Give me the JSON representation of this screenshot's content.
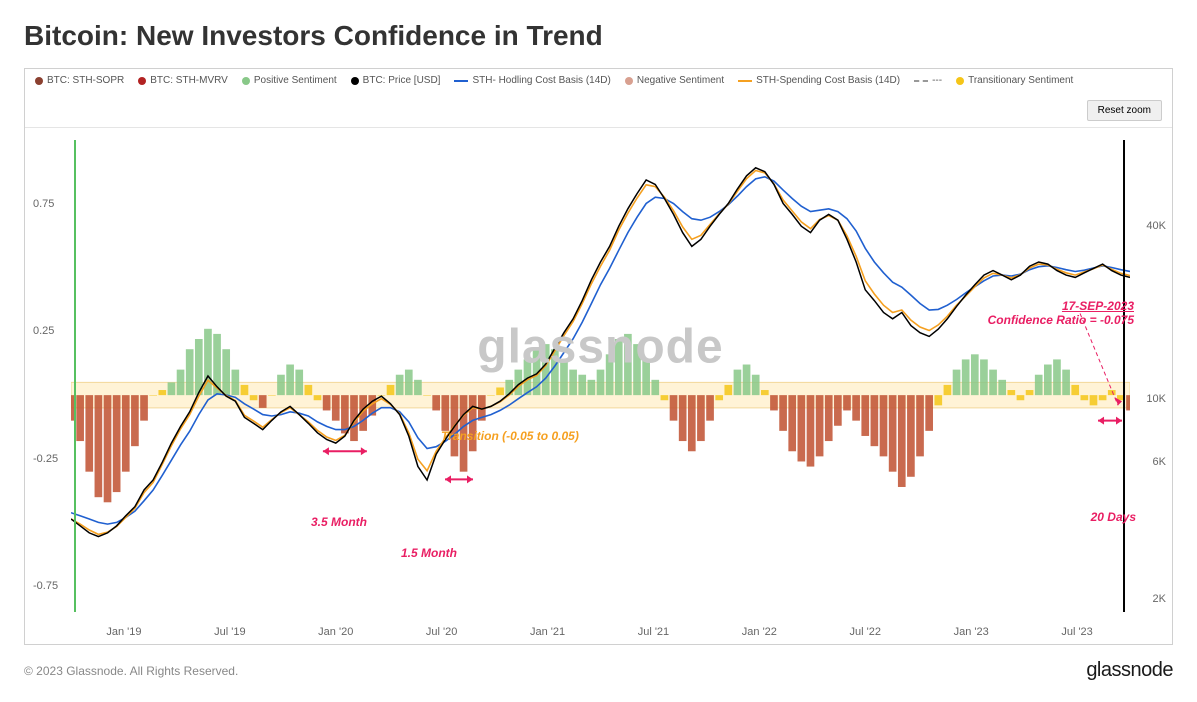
{
  "title": "Bitcoin: New Investors Confidence in Trend",
  "watermark": "glassnode",
  "reset_zoom_label": "Reset zoom",
  "footer_copyright": "© 2023 Glassnode. All Rights Reserved.",
  "footer_brand": "glassnode",
  "legend": [
    {
      "type": "dot",
      "color": "#8b4030",
      "label": "BTC: STH-SOPR"
    },
    {
      "type": "dot",
      "color": "#b22222",
      "label": "BTC: STH-MVRV"
    },
    {
      "type": "dot",
      "color": "#88c888",
      "label": "Positive Sentiment"
    },
    {
      "type": "dot",
      "color": "#000000",
      "label": "BTC: Price [USD]"
    },
    {
      "type": "line",
      "color": "#2060d0",
      "label": "STH- Hodling Cost Basis (14D)"
    },
    {
      "type": "dot",
      "color": "#d8a090",
      "label": "Negative Sentiment"
    },
    {
      "type": "line",
      "color": "#f5a020",
      "label": "STH-Spending Cost Basis (14D)"
    },
    {
      "type": "dash",
      "color": "#999999",
      "label": "---"
    },
    {
      "type": "dot",
      "color": "#f5c518",
      "label": "Transitionary Sentiment"
    }
  ],
  "axis": {
    "left_ticks": [
      {
        "v": 0.75,
        "label": "0.75"
      },
      {
        "v": 0.25,
        "label": "0.25"
      },
      {
        "v": -0.25,
        "label": "-0.25"
      },
      {
        "v": -0.75,
        "label": "-0.75"
      }
    ],
    "right_ticks": [
      {
        "v": 40000,
        "label": "40K"
      },
      {
        "v": 10000,
        "label": "10K"
      },
      {
        "v": 6000,
        "label": "6K"
      },
      {
        "v": 2000,
        "label": "2K"
      }
    ],
    "x_ticks": [
      "Jan '19",
      "Jul '19",
      "Jan '20",
      "Jul '20",
      "Jan '21",
      "Jul '21",
      "Jan '22",
      "Jul '22",
      "Jan '23",
      "Jul '23"
    ],
    "left_range": [
      -0.85,
      1.0
    ],
    "right_log_range": [
      1800,
      80000
    ]
  },
  "transition_band": {
    "low": -0.05,
    "high": 0.05,
    "color": "#fff3d6",
    "border": "#f2d89a"
  },
  "annotations": {
    "callout_date": "17-SEP-2023",
    "callout_ratio": "Confidence Ratio = -0.075",
    "callout_color": "#e91e63",
    "m35": "3.5 Month",
    "m15": "1.5 Month",
    "d20": "20 Days",
    "transition_label": "Transition (-0.05 to 0.05)",
    "transition_label_color": "#f5a020",
    "arrow_color": "#e91e63"
  },
  "colors": {
    "positive_fill": "#88c888",
    "negative_fill": "#c05030",
    "trans_fill": "#f5c518",
    "price": "#000000",
    "hodling": "#2060d0",
    "spending": "#f5a020",
    "vline_left": "#56c060",
    "vline_right": "#000000"
  },
  "sentiment": [
    -0.1,
    -0.18,
    -0.3,
    -0.4,
    -0.42,
    -0.38,
    -0.3,
    -0.2,
    -0.1,
    0.0,
    0.02,
    0.05,
    0.1,
    0.18,
    0.22,
    0.26,
    0.24,
    0.18,
    0.1,
    0.04,
    -0.02,
    -0.05,
    0.0,
    0.08,
    0.12,
    0.1,
    0.04,
    -0.02,
    -0.06,
    -0.1,
    -0.15,
    -0.18,
    -0.14,
    -0.08,
    0.0,
    0.04,
    0.08,
    0.1,
    0.06,
    0.0,
    -0.06,
    -0.14,
    -0.24,
    -0.3,
    -0.22,
    -0.1,
    0.0,
    0.03,
    0.06,
    0.1,
    0.14,
    0.18,
    0.2,
    0.18,
    0.14,
    0.1,
    0.08,
    0.06,
    0.1,
    0.16,
    0.22,
    0.24,
    0.2,
    0.14,
    0.06,
    -0.02,
    -0.1,
    -0.18,
    -0.22,
    -0.18,
    -0.1,
    -0.02,
    0.04,
    0.1,
    0.12,
    0.08,
    0.02,
    -0.06,
    -0.14,
    -0.22,
    -0.26,
    -0.28,
    -0.24,
    -0.18,
    -0.12,
    -0.06,
    -0.1,
    -0.16,
    -0.2,
    -0.24,
    -0.3,
    -0.36,
    -0.32,
    -0.24,
    -0.14,
    -0.04,
    0.04,
    0.1,
    0.14,
    0.16,
    0.14,
    0.1,
    0.06,
    0.02,
    -0.02,
    0.02,
    0.08,
    0.12,
    0.14,
    0.1,
    0.04,
    -0.02,
    -0.04,
    -0.02,
    0.02,
    -0.02,
    -0.06
  ],
  "price": [
    3800,
    3600,
    3400,
    3300,
    3400,
    3600,
    3900,
    4200,
    4800,
    5200,
    6000,
    7000,
    8000,
    9000,
    10500,
    12000,
    11000,
    10200,
    9800,
    8600,
    8200,
    7800,
    8400,
    9000,
    9400,
    8800,
    8200,
    7600,
    7200,
    7000,
    7400,
    8400,
    9200,
    9800,
    10200,
    9600,
    8800,
    7400,
    5800,
    5200,
    6400,
    7200,
    8000,
    8800,
    9400,
    9200,
    9400,
    9800,
    10400,
    11200,
    11800,
    12200,
    13200,
    15000,
    17000,
    19000,
    22000,
    26000,
    30000,
    34000,
    40000,
    46000,
    52000,
    58000,
    56000,
    50000,
    44000,
    38000,
    34000,
    36000,
    40000,
    44000,
    48000,
    54000,
    60000,
    64000,
    62000,
    56000,
    48000,
    44000,
    40000,
    38000,
    42000,
    44000,
    42000,
    36000,
    30000,
    24000,
    22000,
    20000,
    19000,
    20000,
    18000,
    17000,
    16500,
    17500,
    19000,
    21000,
    23000,
    25000,
    27000,
    28000,
    27000,
    26000,
    27000,
    29000,
    30000,
    29500,
    28000,
    27000,
    26500,
    27500,
    28500,
    29500,
    28000,
    27000,
    26500
  ],
  "hodling": [
    4000,
    3900,
    3800,
    3700,
    3650,
    3700,
    3850,
    4050,
    4400,
    4800,
    5400,
    6100,
    6900,
    7700,
    8800,
    9900,
    10400,
    10300,
    10100,
    9600,
    9200,
    8800,
    8700,
    8800,
    9000,
    8900,
    8700,
    8300,
    8000,
    7800,
    7800,
    8000,
    8400,
    8900,
    9300,
    9300,
    9000,
    8300,
    7300,
    6700,
    6800,
    7100,
    7500,
    8000,
    8400,
    8600,
    8800,
    9100,
    9500,
    10000,
    10500,
    11000,
    11800,
    13000,
    14500,
    16200,
    18500,
    21500,
    25000,
    28500,
    33000,
    38000,
    43000,
    48000,
    50500,
    50000,
    48000,
    45000,
    42500,
    42000,
    43000,
    45000,
    47500,
    51000,
    55000,
    58500,
    59500,
    57500,
    53500,
    50000,
    47000,
    45000,
    45500,
    46000,
    45000,
    42500,
    38500,
    33500,
    30000,
    27500,
    25500,
    24500,
    23000,
    21500,
    20400,
    20500,
    21200,
    22200,
    23400,
    24600,
    25800,
    26800,
    27000,
    26800,
    27200,
    28200,
    28900,
    29100,
    28700,
    28200,
    27800,
    28100,
    28600,
    29100,
    28700,
    28200,
    27800
  ],
  "spending": [
    3800,
    3650,
    3480,
    3360,
    3420,
    3580,
    3850,
    4150,
    4700,
    5100,
    5900,
    6850,
    7850,
    8800,
    10200,
    11600,
    10900,
    10250,
    9850,
    8750,
    8350,
    7950,
    8450,
    8950,
    9300,
    8800,
    8300,
    7750,
    7350,
    7150,
    7450,
    8300,
    9050,
    9600,
    10000,
    9550,
    8850,
    7600,
    6150,
    5600,
    6550,
    7300,
    8050,
    8750,
    9300,
    9200,
    9400,
    9750,
    10300,
    11050,
    11650,
    12050,
    13050,
    14700,
    16600,
    18600,
    21500,
    25200,
    29000,
    33000,
    38800,
    44400,
    50200,
    55800,
    55000,
    50500,
    45300,
    39800,
    36000,
    37200,
    40600,
    44200,
    47800,
    53000,
    58600,
    62600,
    61400,
    56200,
    49400,
    45200,
    41400,
    39200,
    42200,
    43600,
    42000,
    37000,
    31400,
    25800,
    23200,
    21200,
    20000,
    20400,
    18800,
    17800,
    17300,
    18100,
    19400,
    21200,
    22800,
    24600,
    26400,
    27400,
    27000,
    26400,
    27100,
    28600,
    29500,
    29300,
    28300,
    27500,
    27000,
    27700,
    28400,
    29300,
    28300,
    27400,
    26900
  ]
}
